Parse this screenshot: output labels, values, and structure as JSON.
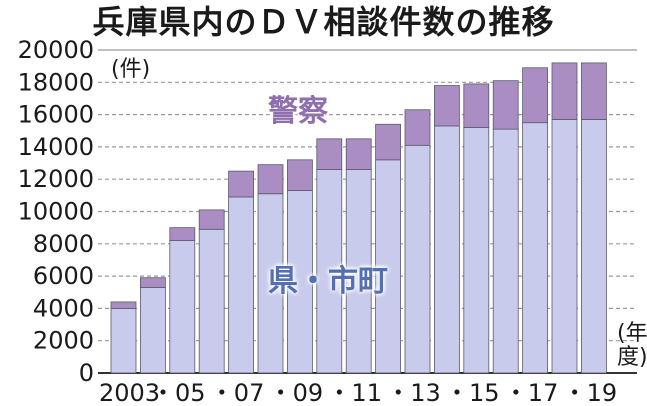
{
  "chart_data": {
    "type": "bar",
    "stacked": true,
    "title": "兵庫県内のＤＶ相談件数の推移",
    "y_unit": "(件)",
    "x_unit": "(年度)",
    "ylim": [
      0,
      20000
    ],
    "yticks": [
      "0",
      "2000",
      "4000",
      "6000",
      "8000",
      "10000",
      "12000",
      "14000",
      "16000",
      "18000",
      "20000"
    ],
    "grid": true,
    "x_tick_labels": [
      "2003",
      "・05",
      "・07",
      "・09",
      "・11",
      "・13",
      "・15",
      "・17",
      "・19"
    ],
    "categories": [
      "2003",
      "2004",
      "2005",
      "2006",
      "2007",
      "2008",
      "2009",
      "2010",
      "2011",
      "2012",
      "2013",
      "2014",
      "2015",
      "2016",
      "2017",
      "2018",
      "2019"
    ],
    "series": [
      {
        "name": "県・市町",
        "color": "#c8cbeb",
        "values": [
          4000,
          5300,
          8200,
          8900,
          10900,
          11100,
          11300,
          12600,
          12600,
          13200,
          14100,
          15300,
          15200,
          15100,
          15500,
          15700,
          15700
        ]
      },
      {
        "name": "警察",
        "color": "#a98dc3",
        "values": [
          400,
          600,
          800,
          1200,
          1600,
          1800,
          1900,
          1900,
          1900,
          2200,
          2200,
          2500,
          2700,
          3000,
          3400,
          3500,
          3500
        ]
      }
    ]
  }
}
